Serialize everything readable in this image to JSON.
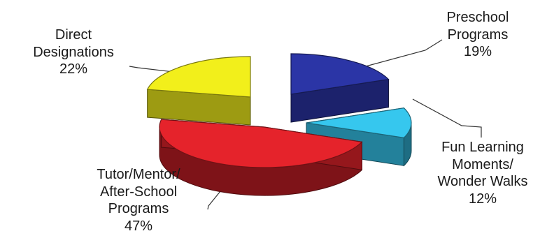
{
  "chart_data": {
    "type": "pie",
    "style": "3d-exploded",
    "title": "",
    "slices": [
      {
        "label_lines": [
          "Preschool",
          "Programs"
        ],
        "percent_text": "19%",
        "value": 19,
        "color": "#2b35a6"
      },
      {
        "label_lines": [
          "Fun Learning",
          "Moments/",
          "Wonder Walks"
        ],
        "percent_text": "12%",
        "value": 12,
        "color": "#36c7ee"
      },
      {
        "label_lines": [
          "Tutor/Mentor/",
          "After-School",
          "Programs"
        ],
        "percent_text": "47%",
        "value": 47,
        "color": "#e5232b"
      },
      {
        "label_lines": [
          "Direct",
          "Designations"
        ],
        "percent_text": "22%",
        "value": 22,
        "color": "#f2ef1b"
      }
    ]
  }
}
